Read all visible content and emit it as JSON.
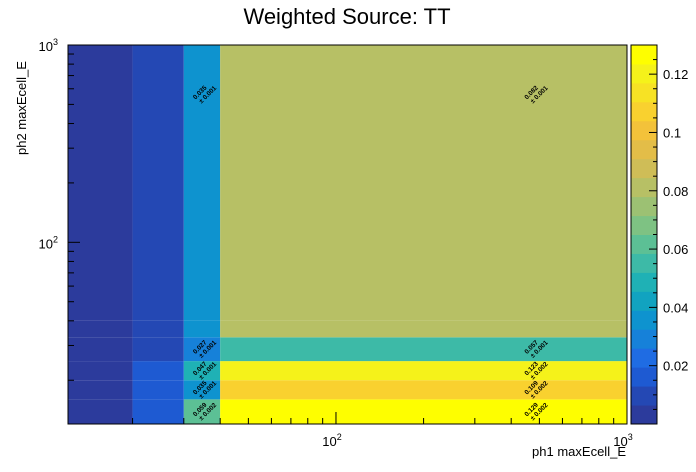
{
  "chart_data": {
    "type": "heatmap",
    "title": "Weighted Source: TT",
    "xlabel": "ph1 maxEcell_E",
    "ylabel": "ph2 maxEcell_E",
    "xscale": "log",
    "yscale": "log",
    "xlim": [
      12,
      1000
    ],
    "ylim": [
      12,
      1000
    ],
    "x_tick_labels": [
      "10^2",
      "10^3"
    ],
    "y_tick_labels": [
      "10^2",
      "10^3"
    ],
    "colorbar": {
      "range": [
        0,
        0.13
      ],
      "tick_labels": [
        "0.02",
        "0.04",
        "0.06",
        "0.08",
        "0.1",
        "0.12"
      ],
      "tick_values": [
        0.02,
        0.04,
        0.06,
        0.08,
        0.1,
        0.12
      ]
    },
    "x_edges": [
      12,
      20,
      30,
      40,
      1000
    ],
    "y_edges": [
      12,
      16,
      20,
      25,
      33,
      40,
      1000
    ],
    "cells": [
      {
        "ix": 0,
        "iy": 0,
        "value": 0.005
      },
      {
        "ix": 1,
        "iy": 0,
        "value": 0.014
      },
      {
        "ix": 2,
        "iy": 0,
        "value": 0.059
      },
      {
        "ix": 3,
        "iy": 0,
        "value": 0.129
      },
      {
        "ix": 0,
        "iy": 1,
        "value": 0.005
      },
      {
        "ix": 1,
        "iy": 1,
        "value": 0.015
      },
      {
        "ix": 2,
        "iy": 1,
        "value": 0.035
      },
      {
        "ix": 3,
        "iy": 1,
        "value": 0.109
      },
      {
        "ix": 0,
        "iy": 2,
        "value": 0.005
      },
      {
        "ix": 1,
        "iy": 2,
        "value": 0.017
      },
      {
        "ix": 2,
        "iy": 2,
        "value": 0.047
      },
      {
        "ix": 3,
        "iy": 2,
        "value": 0.123
      },
      {
        "ix": 0,
        "iy": 3,
        "value": 0.003
      },
      {
        "ix": 1,
        "iy": 3,
        "value": 0.011
      },
      {
        "ix": 2,
        "iy": 3,
        "value": 0.027
      },
      {
        "ix": 3,
        "iy": 3,
        "value": 0.057
      },
      {
        "ix": 0,
        "iy": 4,
        "value": 0.004
      },
      {
        "ix": 1,
        "iy": 4,
        "value": 0.012
      },
      {
        "ix": 2,
        "iy": 4,
        "value": 0.035
      },
      {
        "ix": 3,
        "iy": 4,
        "value": 0.082
      },
      {
        "ix": 0,
        "iy": 5,
        "value": 0.004
      },
      {
        "ix": 1,
        "iy": 5,
        "value": 0.012
      },
      {
        "ix": 2,
        "iy": 5,
        "value": 0.035
      },
      {
        "ix": 3,
        "iy": 5,
        "value": 0.082
      }
    ],
    "labeled_cells": [
      {
        "ix": 3,
        "iy": 5,
        "value_label": "0.082",
        "error_label": "± 0.001"
      },
      {
        "ix": 3,
        "iy": 3,
        "value_label": "0.057",
        "error_label": "± 0.001"
      },
      {
        "ix": 3,
        "iy": 2,
        "value_label": "0.123",
        "error_label": "± 0.002"
      },
      {
        "ix": 3,
        "iy": 1,
        "value_label": "0.109",
        "error_label": "± 0.002"
      },
      {
        "ix": 3,
        "iy": 0,
        "value_label": "0.129",
        "error_label": "± 0.002"
      },
      {
        "ix": 2,
        "iy": 5,
        "value_label": "0.035",
        "error_label": "± 0.001"
      },
      {
        "ix": 2,
        "iy": 3,
        "value_label": "0.027",
        "error_label": "± 0.001"
      },
      {
        "ix": 2,
        "iy": 2,
        "value_label": "0.047",
        "error_label": "± 0.001"
      },
      {
        "ix": 2,
        "iy": 1,
        "value_label": "0.035",
        "error_label": "± 0.001"
      },
      {
        "ix": 2,
        "iy": 0,
        "value_label": "0.059",
        "error_label": "± 0.002"
      }
    ]
  }
}
